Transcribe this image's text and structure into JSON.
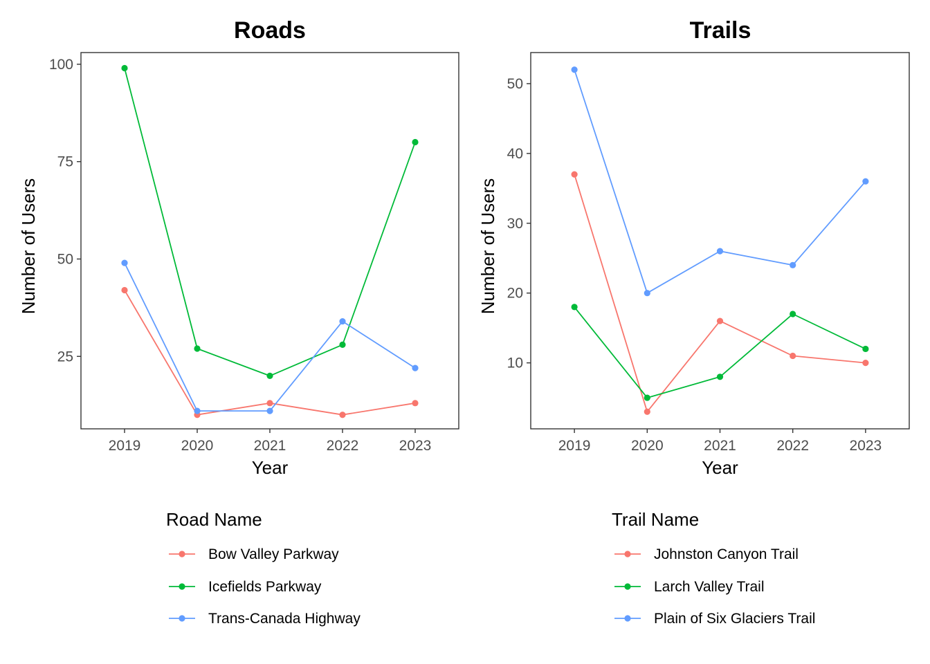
{
  "chart_data": [
    {
      "type": "line",
      "title": "Roads",
      "xlabel": "Year",
      "ylabel": "Number of Users",
      "x": [
        2019,
        2020,
        2021,
        2022,
        2023
      ],
      "x_tick_labels": [
        "2019",
        "2020",
        "2021",
        "2022",
        "2023"
      ],
      "y_ticks": [
        25,
        50,
        75,
        100
      ],
      "y_tick_labels": [
        "25",
        "50",
        "75",
        "100"
      ],
      "ylim": [
        6.4,
        103
      ],
      "xlim": [
        2018.4,
        2023.6
      ],
      "grid": false,
      "legend_title": "Road Name",
      "legend_position": "bottom",
      "series": [
        {
          "name": "Bow Valley Parkway",
          "color": "#F8766D",
          "values": [
            42,
            10,
            13,
            10,
            13
          ]
        },
        {
          "name": "Icefields Parkway",
          "color": "#00BA38",
          "values": [
            99,
            27,
            20,
            28,
            80
          ]
        },
        {
          "name": "Trans-Canada Highway",
          "color": "#619CFF",
          "values": [
            49,
            11,
            11,
            34,
            22
          ]
        }
      ]
    },
    {
      "type": "line",
      "title": "Trails",
      "xlabel": "Year",
      "ylabel": "Number of Users",
      "x": [
        2019,
        2020,
        2021,
        2022,
        2023
      ],
      "x_tick_labels": [
        "2019",
        "2020",
        "2021",
        "2022",
        "2023"
      ],
      "y_ticks": [
        10,
        20,
        30,
        40,
        50
      ],
      "y_tick_labels": [
        "10",
        "20",
        "30",
        "40",
        "50"
      ],
      "ylim": [
        0.55,
        54.45
      ],
      "xlim": [
        2018.4,
        2023.6
      ],
      "grid": false,
      "legend_title": "Trail Name",
      "legend_position": "bottom",
      "series": [
        {
          "name": "Johnston Canyon Trail",
          "color": "#F8766D",
          "values": [
            37,
            3,
            16,
            11,
            10
          ]
        },
        {
          "name": "Larch Valley Trail",
          "color": "#00BA38",
          "values": [
            18,
            5,
            8,
            17,
            12
          ]
        },
        {
          "name": "Plain of Six Glaciers Trail",
          "color": "#619CFF",
          "values": [
            52,
            20,
            26,
            24,
            36
          ]
        }
      ]
    }
  ]
}
